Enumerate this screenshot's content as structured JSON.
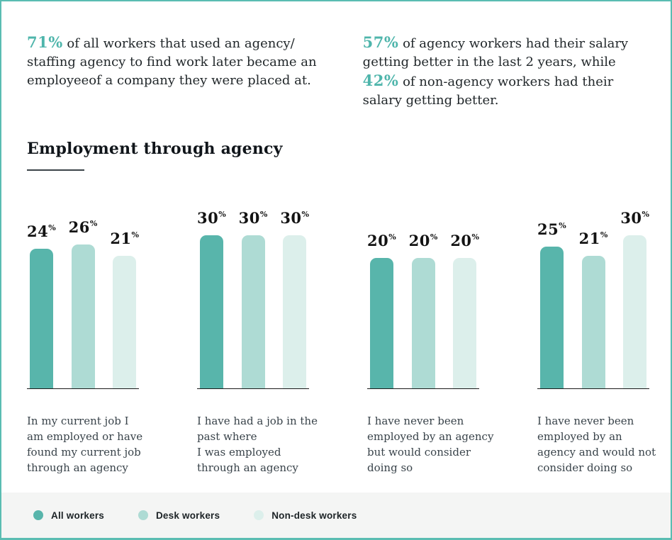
{
  "intro": {
    "left": {
      "stat": "71%",
      "text": " of all workers that used an agency/\nstaffing agency to find work later became an\nemployeeof a company they were placed at."
    },
    "right": {
      "stat1": "57%",
      "text1": " of agency workers had their salary\ngetting better in the last 2 years, while\n",
      "stat2": "42%",
      "text2": " of non-agency workers had their\nsalary getting better."
    }
  },
  "chart_data": {
    "type": "bar",
    "title": "Employment through agency",
    "unit": "%",
    "categories": [
      "In my current job I\nam employed or have\nfound my current job\nthrough an agency",
      "I have had a job in the\npast where\nI was employed\nthrough an agency",
      "I have never been\nemployed by an agency\nbut would consider\ndoing so",
      "I have never been\nemployed by an\nagency and would not\nconsider doing so"
    ],
    "series": [
      {
        "name": "All workers",
        "values": [
          24,
          30,
          20,
          25
        ]
      },
      {
        "name": "Desk workers",
        "values": [
          26,
          30,
          20,
          21
        ]
      },
      {
        "name": "Non-desk workers",
        "values": [
          21,
          30,
          20,
          30
        ]
      }
    ],
    "colors": [
      "#58b5ab",
      "#aedbd4",
      "#dcefeb"
    ],
    "ylim": [
      0,
      30
    ],
    "grid": false,
    "value_labels": true,
    "legend_position": "bottom"
  },
  "theme": {
    "accent": "#4eb5ab",
    "frame_border": "#5abdb2",
    "legend_background": "#f4f5f4",
    "baseline_color": "#1a1a1a",
    "text_dark": "#22282b",
    "caption_color": "#39434a"
  }
}
